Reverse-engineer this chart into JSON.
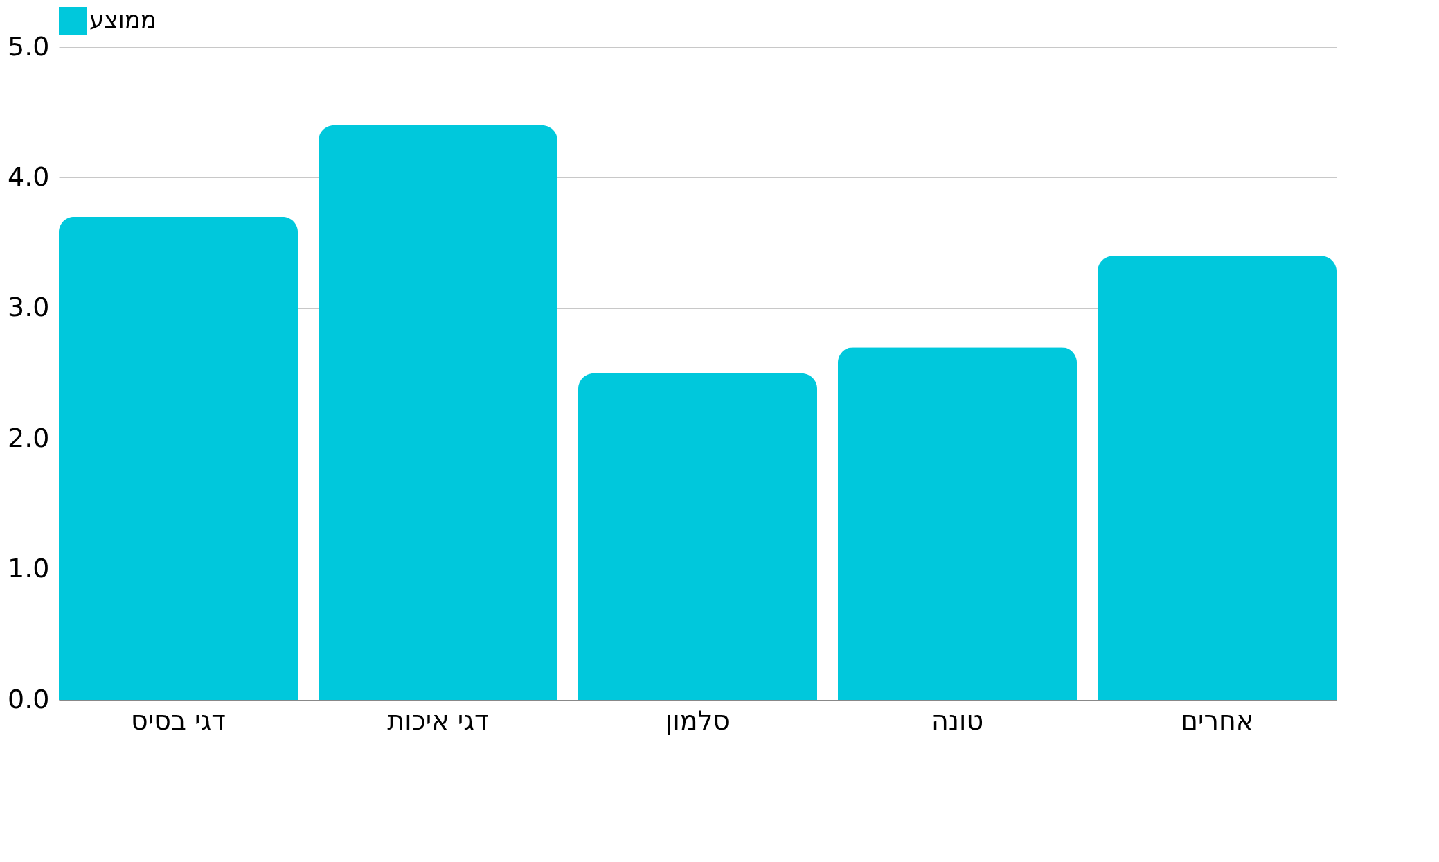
{
  "chart_data": {
    "type": "bar",
    "categories": [
      "דגי בסיס",
      "דגי איכות",
      "סלמון",
      "טונה",
      "אחרים"
    ],
    "series": [
      {
        "name": "ממוצע",
        "color": "#00c8dc",
        "values": [
          3.7,
          4.4,
          2.5,
          2.7,
          3.4
        ]
      }
    ],
    "ylim": [
      0,
      5
    ],
    "yticks": [
      {
        "value": 0,
        "label": "0.0"
      },
      {
        "value": 1,
        "label": "1.0"
      },
      {
        "value": 2,
        "label": "2.0"
      },
      {
        "value": 3,
        "label": "3.0"
      },
      {
        "value": 4,
        "label": "4.0"
      },
      {
        "value": 5,
        "label": "5.0"
      }
    ],
    "grid": "y",
    "legend": "top"
  }
}
